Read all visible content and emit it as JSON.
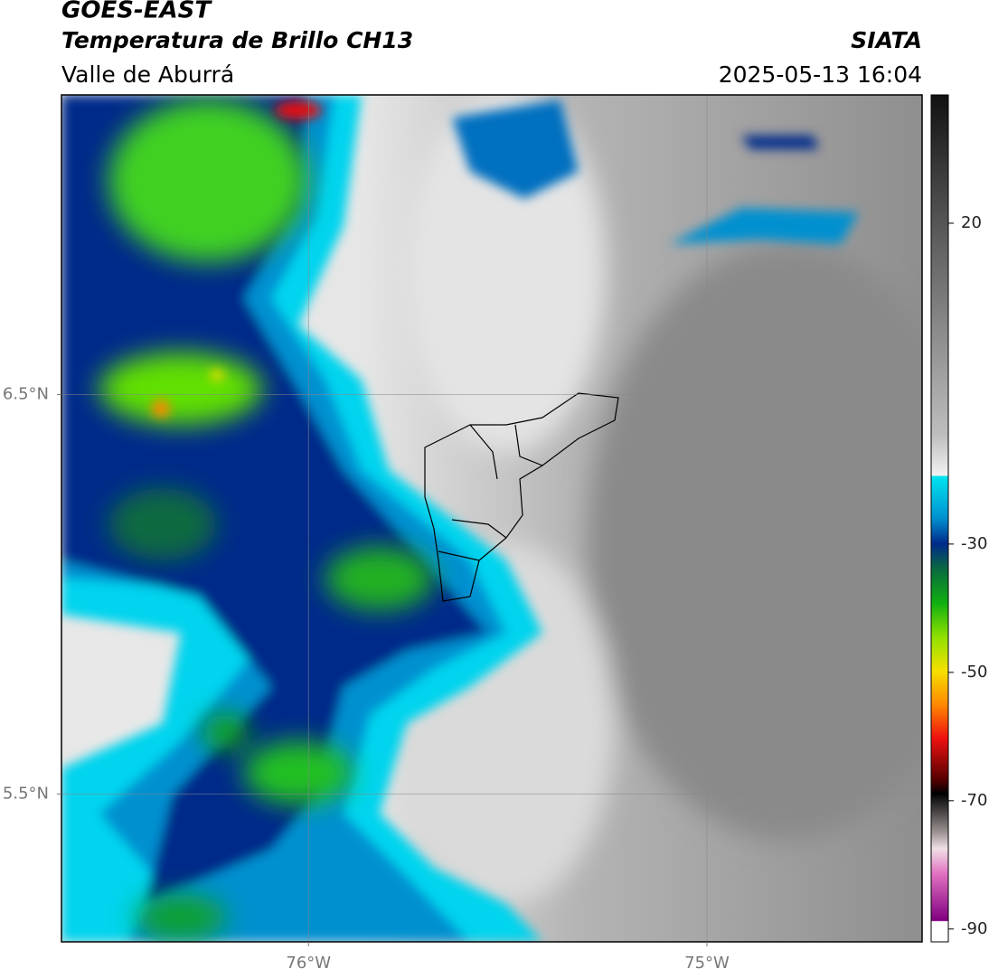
{
  "chart_data": {
    "type": "map",
    "title": "GOES-EAST",
    "subtitle": "Temperatura de Brillo CH13",
    "region": "Valle de Aburrá",
    "source": "SIATA",
    "datetime": "2025-05-13 16:04",
    "xlim": [
      -76.62,
      -74.46
    ],
    "ylim": [
      5.13,
      7.25
    ],
    "xticks": [
      {
        "value": -76,
        "label": "76°W"
      },
      {
        "value": -75,
        "label": "75°W"
      }
    ],
    "yticks": [
      {
        "value": 6.5,
        "label": "6.5°N"
      },
      {
        "value": 5.5,
        "label": "5.5°N"
      }
    ],
    "grid": true,
    "colorbar": {
      "lim": [
        -92,
        40
      ],
      "ticks": [
        20,
        -30,
        -50,
        -70,
        -90
      ]
    }
  }
}
